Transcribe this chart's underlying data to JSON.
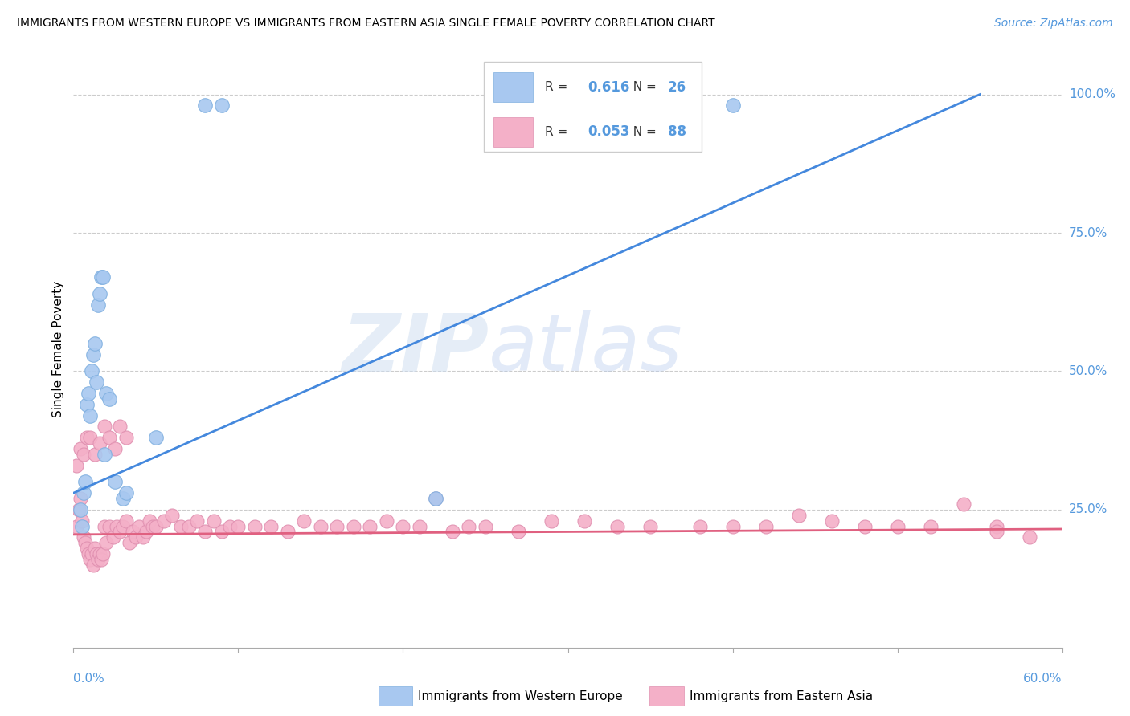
{
  "title": "IMMIGRANTS FROM WESTERN EUROPE VS IMMIGRANTS FROM EASTERN ASIA SINGLE FEMALE POVERTY CORRELATION CHART",
  "source": "Source: ZipAtlas.com",
  "ylabel": "Single Female Poverty",
  "right_ytick_vals": [
    0.25,
    0.5,
    0.75,
    1.0
  ],
  "right_ytick_labels": [
    "25.0%",
    "50.0%",
    "75.0%",
    "100.0%"
  ],
  "xlim": [
    0.0,
    0.6
  ],
  "ylim": [
    0.0,
    1.08
  ],
  "blue_R": "0.616",
  "blue_N": "26",
  "pink_R": "0.053",
  "pink_N": "88",
  "blue_scatter_color": "#a8c8f0",
  "pink_scatter_color": "#f4b0c8",
  "blue_line_color": "#4488dd",
  "pink_line_color": "#e06080",
  "accent_color": "#5599dd",
  "legend_label_blue": "Immigrants from Western Europe",
  "legend_label_pink": "Immigrants from Eastern Asia",
  "blue_scatter_x": [
    0.004,
    0.005,
    0.006,
    0.007,
    0.008,
    0.009,
    0.01,
    0.011,
    0.012,
    0.013,
    0.014,
    0.015,
    0.016,
    0.017,
    0.018,
    0.019,
    0.02,
    0.022,
    0.025,
    0.03,
    0.032,
    0.05,
    0.08,
    0.09,
    0.22,
    0.4
  ],
  "blue_scatter_y": [
    0.25,
    0.22,
    0.28,
    0.3,
    0.44,
    0.46,
    0.42,
    0.5,
    0.53,
    0.55,
    0.48,
    0.62,
    0.64,
    0.67,
    0.67,
    0.35,
    0.46,
    0.45,
    0.3,
    0.27,
    0.28,
    0.38,
    0.98,
    0.98,
    0.27,
    0.98
  ],
  "pink_scatter_x": [
    0.002,
    0.003,
    0.004,
    0.005,
    0.006,
    0.007,
    0.008,
    0.009,
    0.01,
    0.011,
    0.012,
    0.013,
    0.014,
    0.015,
    0.016,
    0.017,
    0.018,
    0.019,
    0.02,
    0.022,
    0.024,
    0.026,
    0.028,
    0.03,
    0.032,
    0.034,
    0.036,
    0.038,
    0.04,
    0.042,
    0.044,
    0.046,
    0.048,
    0.05,
    0.055,
    0.06,
    0.065,
    0.07,
    0.075,
    0.08,
    0.085,
    0.09,
    0.095,
    0.1,
    0.11,
    0.12,
    0.13,
    0.14,
    0.15,
    0.16,
    0.17,
    0.18,
    0.19,
    0.2,
    0.21,
    0.22,
    0.23,
    0.24,
    0.25,
    0.27,
    0.29,
    0.31,
    0.33,
    0.35,
    0.38,
    0.4,
    0.42,
    0.44,
    0.46,
    0.48,
    0.5,
    0.52,
    0.54,
    0.56,
    0.58,
    0.002,
    0.004,
    0.006,
    0.008,
    0.01,
    0.013,
    0.016,
    0.019,
    0.022,
    0.025,
    0.028,
    0.032,
    0.56
  ],
  "pink_scatter_y": [
    0.22,
    0.25,
    0.27,
    0.23,
    0.2,
    0.19,
    0.18,
    0.17,
    0.16,
    0.17,
    0.15,
    0.18,
    0.17,
    0.16,
    0.17,
    0.16,
    0.17,
    0.22,
    0.19,
    0.22,
    0.2,
    0.22,
    0.21,
    0.22,
    0.23,
    0.19,
    0.21,
    0.2,
    0.22,
    0.2,
    0.21,
    0.23,
    0.22,
    0.22,
    0.23,
    0.24,
    0.22,
    0.22,
    0.23,
    0.21,
    0.23,
    0.21,
    0.22,
    0.22,
    0.22,
    0.22,
    0.21,
    0.23,
    0.22,
    0.22,
    0.22,
    0.22,
    0.23,
    0.22,
    0.22,
    0.27,
    0.21,
    0.22,
    0.22,
    0.21,
    0.23,
    0.23,
    0.22,
    0.22,
    0.22,
    0.22,
    0.22,
    0.24,
    0.23,
    0.22,
    0.22,
    0.22,
    0.26,
    0.22,
    0.2,
    0.33,
    0.36,
    0.35,
    0.38,
    0.38,
    0.35,
    0.37,
    0.4,
    0.38,
    0.36,
    0.4,
    0.38,
    0.21
  ],
  "blue_line_x0": 0.0,
  "blue_line_y0": 0.28,
  "blue_line_x1": 0.55,
  "blue_line_y1": 1.0,
  "pink_line_x0": 0.0,
  "pink_line_y0": 0.205,
  "pink_line_x1": 0.6,
  "pink_line_y1": 0.215
}
